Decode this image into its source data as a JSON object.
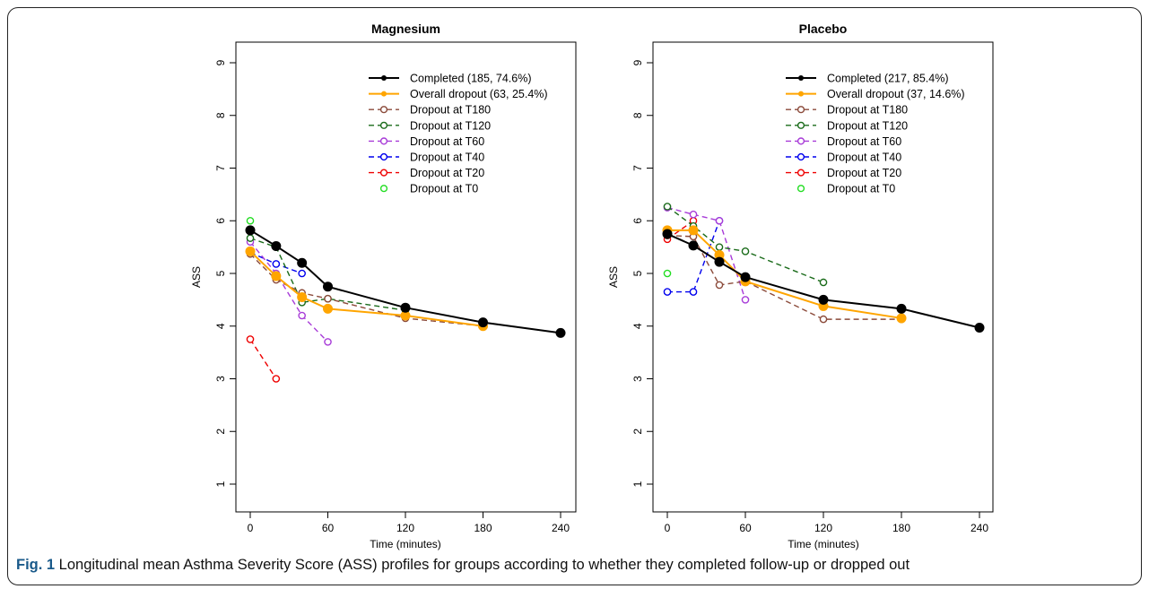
{
  "caption": {
    "label": "Fig. 1",
    "text": " Longitudinal mean Asthma Severity Score (ASS) profiles for groups according to whether they completed follow-up or dropped out"
  },
  "chart_data": [
    {
      "type": "line",
      "title": "Magnesium",
      "xlabel": "Time (minutes)",
      "ylabel": "ASS",
      "xlim": [
        0,
        240
      ],
      "ylim": [
        1,
        9
      ],
      "xticks": [
        0,
        60,
        120,
        180,
        240
      ],
      "yticks": [
        1,
        2,
        3,
        4,
        5,
        6,
        7,
        8,
        9
      ],
      "legend_position": "top-right",
      "series": [
        {
          "name": "Completed (185, 74.6%)",
          "color": "#000000",
          "style": "solid-filled",
          "x": [
            0,
            20,
            40,
            60,
            120,
            180,
            240
          ],
          "y": [
            5.82,
            5.52,
            5.2,
            4.75,
            4.35,
            4.07,
            3.87
          ]
        },
        {
          "name": "Overall dropout (63, 25.4%)",
          "color": "#ffa500",
          "style": "solid-filled",
          "x": [
            0,
            20,
            40,
            60,
            120,
            180
          ],
          "y": [
            5.42,
            4.95,
            4.55,
            4.33,
            4.2,
            4.0
          ]
        },
        {
          "name": "Dropout at T180",
          "color": "#8b4a3a",
          "style": "dashed-open",
          "x": [
            0,
            20,
            40,
            60,
            120,
            180
          ],
          "y": [
            5.37,
            4.88,
            4.63,
            4.52,
            4.15,
            4.0
          ]
        },
        {
          "name": "Dropout at T120",
          "color": "#1a6b1a",
          "style": "dashed-open",
          "x": [
            0,
            20,
            40,
            60,
            120
          ],
          "y": [
            5.67,
            5.5,
            4.45,
            4.52,
            4.3
          ]
        },
        {
          "name": "Dropout at T60",
          "color": "#a83cd8",
          "style": "dashed-open",
          "x": [
            0,
            20,
            40,
            60
          ],
          "y": [
            5.6,
            5.0,
            4.2,
            3.7
          ]
        },
        {
          "name": "Dropout at T40",
          "color": "#0000ee",
          "style": "dashed-open",
          "x": [
            0,
            20,
            40
          ],
          "y": [
            5.4,
            5.18,
            5.0
          ]
        },
        {
          "name": "Dropout at T20",
          "color": "#ee0000",
          "style": "dashed-open",
          "x": [
            0,
            20
          ],
          "y": [
            3.75,
            3.0
          ]
        },
        {
          "name": "Dropout at T0",
          "color": "#22dd22",
          "style": "open-point",
          "x": [
            0
          ],
          "y": [
            6.0
          ]
        }
      ]
    },
    {
      "type": "line",
      "title": "Placebo",
      "xlabel": "Time (minutes)",
      "ylabel": "ASS",
      "xlim": [
        0,
        240
      ],
      "ylim": [
        1,
        9
      ],
      "xticks": [
        0,
        60,
        120,
        180,
        240
      ],
      "yticks": [
        1,
        2,
        3,
        4,
        5,
        6,
        7,
        8,
        9
      ],
      "legend_position": "top-right",
      "series": [
        {
          "name": "Completed (217, 85.4%)",
          "color": "#000000",
          "style": "solid-filled",
          "x": [
            0,
            20,
            40,
            60,
            120,
            180,
            240
          ],
          "y": [
            5.75,
            5.53,
            5.22,
            4.93,
            4.5,
            4.33,
            3.97
          ]
        },
        {
          "name": "Overall dropout (37, 14.6%)",
          "color": "#ffa500",
          "style": "solid-filled",
          "x": [
            0,
            20,
            40,
            60,
            120,
            180
          ],
          "y": [
            5.82,
            5.82,
            5.35,
            4.85,
            4.38,
            4.15
          ]
        },
        {
          "name": "Dropout at T180",
          "color": "#8b4a3a",
          "style": "dashed-open",
          "x": [
            0,
            20,
            40,
            60,
            120,
            180
          ],
          "y": [
            5.72,
            5.7,
            4.78,
            4.85,
            4.13,
            4.13
          ]
        },
        {
          "name": "Dropout at T120",
          "color": "#1a6b1a",
          "style": "dashed-open",
          "x": [
            0,
            20,
            40,
            60,
            120
          ],
          "y": [
            6.27,
            5.9,
            5.5,
            5.42,
            4.83
          ]
        },
        {
          "name": "Dropout at T60",
          "color": "#a83cd8",
          "style": "dashed-open",
          "x": [
            0,
            20,
            40,
            60
          ],
          "y": [
            6.25,
            6.12,
            6.0,
            4.5
          ]
        },
        {
          "name": "Dropout at T40",
          "color": "#0000ee",
          "style": "dashed-open",
          "x": [
            0,
            20,
            40
          ],
          "y": [
            4.65,
            4.65,
            6.0
          ]
        },
        {
          "name": "Dropout at T20",
          "color": "#ee0000",
          "style": "dashed-open",
          "x": [
            0,
            20
          ],
          "y": [
            5.65,
            6.0
          ]
        },
        {
          "name": "Dropout at T0",
          "color": "#22dd22",
          "style": "open-point",
          "x": [
            0
          ],
          "y": [
            5.0
          ]
        }
      ]
    }
  ]
}
